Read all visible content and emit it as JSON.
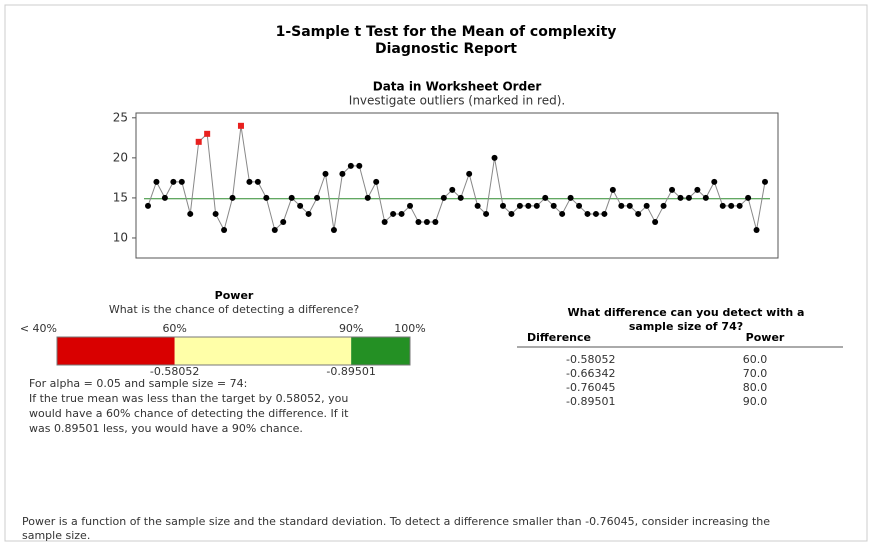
{
  "header": {
    "title": "1-Sample t Test for the Mean of complexity",
    "subtitle": "Diagnostic Report"
  },
  "chart_data": {
    "type": "line",
    "title": "Data in Worksheet Order",
    "subtitle": "Investigate outliers (marked in red).",
    "values": [
      14,
      17,
      15,
      17,
      17,
      13,
      22,
      23,
      13,
      11,
      15,
      24,
      17,
      17,
      15,
      11,
      12,
      15,
      14,
      13,
      15,
      18,
      11,
      18,
      19,
      19,
      15,
      17,
      12,
      13,
      13,
      14,
      12,
      12,
      12,
      15,
      16,
      15,
      18,
      14,
      13,
      20,
      14,
      13,
      14,
      14,
      14,
      15,
      14,
      13,
      15,
      14,
      13,
      13,
      13,
      16,
      14,
      14,
      13,
      14,
      12,
      14,
      16,
      15,
      15,
      16,
      15,
      17,
      14,
      14,
      14,
      15,
      11,
      17
    ],
    "color": "#000000",
    "line_color": "#888888",
    "outlier_indices": [
      6,
      7,
      11
    ],
    "outlier_color": "#e8201e",
    "reference": 14.9,
    "reference_color": "#2e8b2e",
    "ylim": [
      7.5,
      25.6
    ],
    "yticks": [
      10,
      15,
      20,
      25
    ]
  },
  "power": {
    "title": "Power",
    "subtitle": "What is the chance of detecting a difference?",
    "lim": [
      40,
      100
    ],
    "ticks": [
      {
        "value": 40,
        "label": "< 40%"
      },
      {
        "value": 60,
        "label": "60%"
      },
      {
        "value": 90,
        "label": "90%"
      },
      {
        "value": 100,
        "label": "100%"
      }
    ],
    "segments": [
      {
        "from": 40,
        "to": 60,
        "color": "#d90000"
      },
      {
        "from": 60,
        "to": 90,
        "color": "#ffffa8"
      },
      {
        "from": 90,
        "to": 100,
        "color": "#249024"
      }
    ],
    "markers": [
      {
        "value": 60,
        "label": "-0.58052"
      },
      {
        "value": 90,
        "label": "-0.89501"
      }
    ],
    "text": [
      "For alpha = 0.05 and sample size = 74:",
      "If the true mean was less than the target by 0.58052, you",
      "would have a 60% chance of detecting the difference. If it",
      "was 0.89501 less, you would have a 90% chance."
    ]
  },
  "table": {
    "title": [
      "What difference can you detect with a",
      "sample size of 74?"
    ],
    "columns": [
      "Difference",
      "Power"
    ],
    "rows": [
      [
        "-0.58052",
        "60.0"
      ],
      [
        "-0.66342",
        "70.0"
      ],
      [
        "-0.76045",
        "80.0"
      ],
      [
        "-0.89501",
        "90.0"
      ]
    ]
  },
  "footer": [
    "Power is a function of the sample size and the standard deviation. To detect a difference smaller than -0.76045, consider increasing the",
    "sample size."
  ]
}
